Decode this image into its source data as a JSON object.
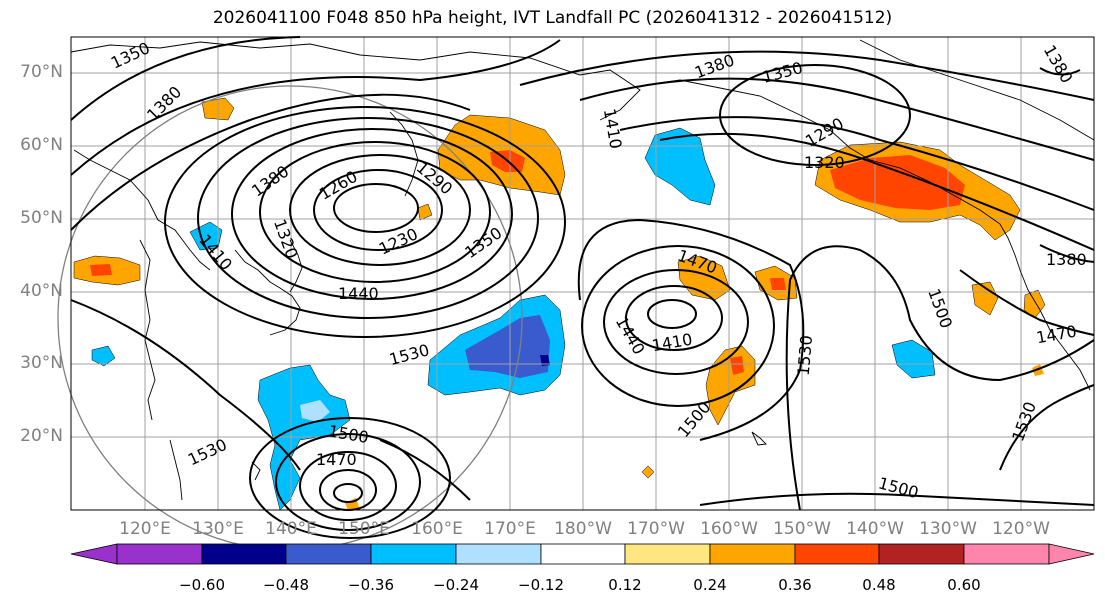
{
  "title": "2026041100 F048 850 hPa height, IVT Landfall PC (2026041312 - 2026041512)",
  "lat_labels": [
    "70°N",
    "60°N",
    "50°N",
    "40°N",
    "30°N",
    "20°N"
  ],
  "lon_labels": [
    "120°E",
    "130°E",
    "140°E",
    "150°E",
    "160°E",
    "170°E",
    "180°W",
    "170°W",
    "160°W",
    "150°W",
    "140°W",
    "130°W",
    "120°W"
  ],
  "contour_labels": [
    "1350",
    "1380",
    "1380",
    "1260",
    "1290",
    "1230",
    "1320",
    "1410",
    "1350",
    "1440",
    "1530",
    "1500",
    "1470",
    "1530",
    "1470",
    "1410",
    "1440",
    "1500",
    "1530",
    "1410",
    "1380",
    "1350",
    "1290",
    "1320",
    "1380",
    "1500",
    "1470",
    "1530",
    "1500",
    "1380"
  ],
  "colorbar": {
    "ticks": [
      "−0.60",
      "−0.48",
      "−0.36",
      "−0.24",
      "−0.12",
      "0.12",
      "0.24",
      "0.36",
      "0.48",
      "0.60"
    ],
    "colors": [
      "#9932cc",
      "#00008b",
      "#3a5bcd",
      "#00bfff",
      "#b0e0ff",
      "#ffffff",
      "#ffe680",
      "#ffa500",
      "#ff4500",
      "#b22222",
      "#ff85ad"
    ]
  }
}
